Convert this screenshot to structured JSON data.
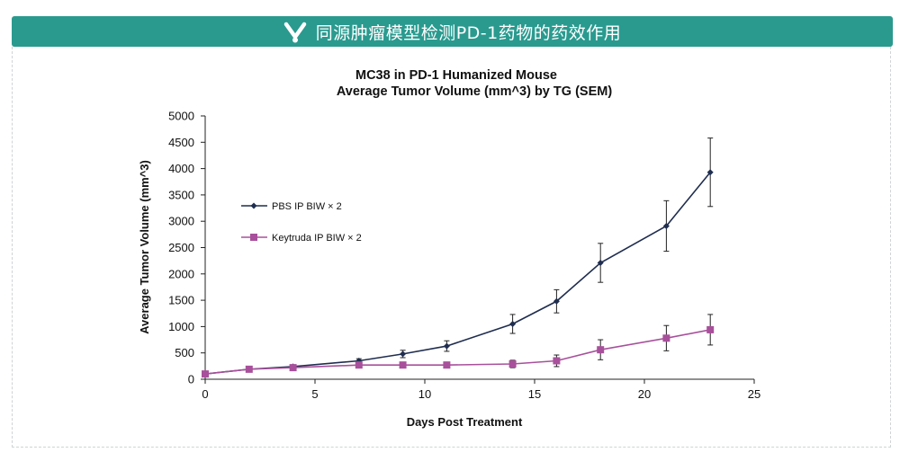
{
  "banner": {
    "title": "同源肿瘤模型检测PD-1药物的药效作用",
    "icon": "check-heart-icon",
    "color": "#2a9a8f"
  },
  "chart_data": {
    "type": "line",
    "title": "MC38 in PD-1 Humanized Mouse",
    "subtitle": "Average Tumor Volume (mm^3) by TG (SEM)",
    "xlabel": "Days Post Treatment",
    "ylabel": "Average Tumor Volume (mm^3)",
    "xlim": [
      0,
      25
    ],
    "ylim": [
      0,
      5000
    ],
    "xticks": [
      0,
      5,
      10,
      15,
      20,
      25
    ],
    "yticks": [
      0,
      500,
      1000,
      1500,
      2000,
      2500,
      3000,
      3500,
      4000,
      4500,
      5000
    ],
    "grid": false,
    "legend_position": "upper-left",
    "series": [
      {
        "name": "PBS IP BIW  × 2",
        "color": "#1f2d4f",
        "marker": "diamond",
        "x": [
          0,
          2,
          4,
          7,
          9,
          11,
          14,
          16,
          18,
          21,
          23
        ],
        "y": [
          100,
          190,
          240,
          350,
          480,
          630,
          1050,
          1480,
          2210,
          2910,
          3930
        ],
        "err": [
          10,
          20,
          30,
          40,
          70,
          100,
          180,
          220,
          370,
          480,
          650
        ]
      },
      {
        "name": "Keytruda IP BIW  × 2",
        "color": "#a8509b",
        "marker": "square",
        "x": [
          0,
          2,
          4,
          7,
          9,
          11,
          14,
          16,
          18,
          21,
          23
        ],
        "y": [
          100,
          190,
          220,
          270,
          270,
          270,
          290,
          350,
          560,
          780,
          940
        ],
        "err": [
          10,
          20,
          30,
          30,
          30,
          50,
          70,
          110,
          190,
          240,
          290
        ]
      }
    ]
  }
}
